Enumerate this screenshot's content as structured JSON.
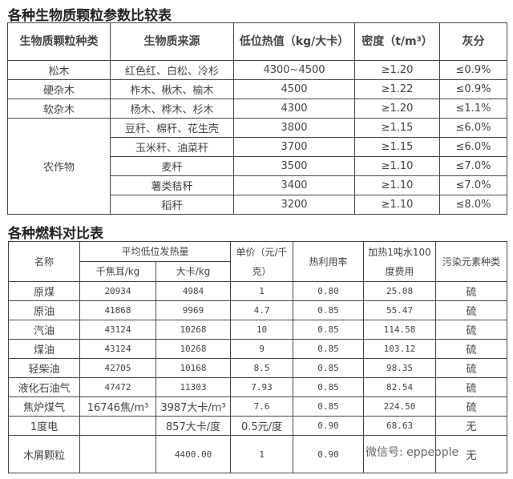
{
  "table1": {
    "title": "各种生物质颗粒参数比较表",
    "headers": [
      "生物质颗粒种类",
      "生物质来源",
      "低位热值（kg/大卡）",
      "密度（t/m³）",
      "灰分"
    ],
    "rows": [
      [
        "松木",
        "红色红、白松、冷杉",
        "4300~4500",
        "≥1.20",
        "≤0.9%"
      ],
      [
        "硬杂木",
        "柞木、楸木、榆木",
        "4500",
        "≥1.22",
        "≤0.9%"
      ],
      [
        "软杂木",
        "杨木、桦木、杉木",
        "4300",
        "≥1.20",
        "≤1.1%"
      ],
      [
        "农作物",
        "豆秆、棉秆、花生壳",
        "3800",
        "≥1.15",
        "≤6.0%"
      ],
      [
        "",
        "玉米秆、油菜秆",
        "3700",
        "≥1.15",
        "≤6.0%"
      ],
      [
        "",
        "麦秆",
        "3500",
        "≥1.10",
        "≤7.0%"
      ],
      [
        "",
        "薯类秸秆",
        "3400",
        "≥1.10",
        "≤7.0%"
      ],
      [
        "",
        "稻秆",
        "3200",
        "≥1.10",
        "≤8.0%"
      ]
    ]
  },
  "table2": {
    "title": "各种燃料对比表",
    "headers": {
      "name": "名称",
      "heat": "平均低位发热量",
      "kj": "千焦耳/kg",
      "kcal": "大卡/kg",
      "price": "单价（元/千克）",
      "eff": "热利用率",
      "cost": "加热1吨水100度费用",
      "pollutant": "污染元素种类"
    },
    "rows": [
      [
        "原煤",
        "20934",
        "4984",
        "1",
        "0.80",
        "25.08",
        "硫"
      ],
      [
        "原油",
        "41868",
        "9969",
        "4.7",
        "0.85",
        "55.47",
        "硫"
      ],
      [
        "汽油",
        "43124",
        "10268",
        "10",
        "0.85",
        "114.58",
        "硫"
      ],
      [
        "煤油",
        "43124",
        "10268",
        "9",
        "0.85",
        "103.12",
        "硫"
      ],
      [
        "轻柴油",
        "42705",
        "10168",
        "8.5",
        "0.85",
        "98.35",
        "硫"
      ],
      [
        "液化石油气",
        "47472",
        "11303",
        "7.93",
        "0.85",
        "82.54",
        "硫"
      ],
      [
        "焦炉煤气",
        "16746焦/m³",
        "3987大卡/m³",
        "7.6",
        "0.85",
        "224.50",
        "硫"
      ],
      [
        "1度电",
        "",
        "857大卡/度",
        "0.5元/度",
        "0.90",
        "68.63",
        "无"
      ],
      [
        "木屑颗粒",
        "",
        "4400.00",
        "1",
        "0.90",
        "",
        "无"
      ]
    ]
  },
  "watermark": "微信号: eppeople"
}
